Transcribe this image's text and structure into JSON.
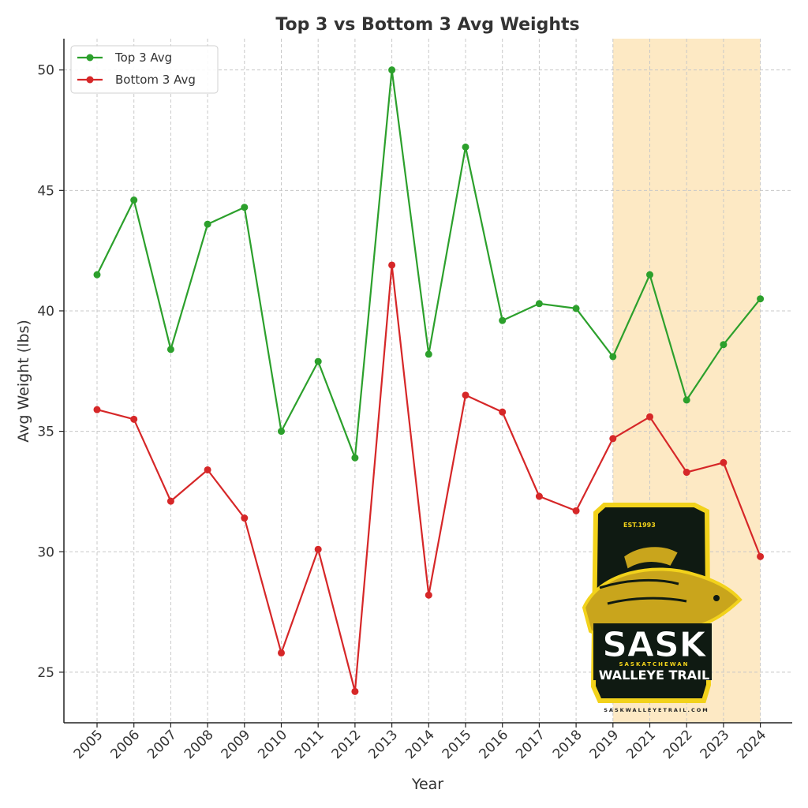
{
  "chart_data": {
    "type": "line",
    "title": "Top 3 vs Bottom 3 Avg Weights",
    "xlabel": "Year",
    "ylabel": "Avg Weight (lbs)",
    "categories": [
      "2005",
      "2006",
      "2007",
      "2008",
      "2009",
      "2010",
      "2011",
      "2012",
      "2013",
      "2014",
      "2015",
      "2016",
      "2017",
      "2018",
      "2019",
      "2021",
      "2022",
      "2023",
      "2024"
    ],
    "series": [
      {
        "name": "Top 3 Avg",
        "color": "#2ca02c",
        "values": [
          41.5,
          44.6,
          38.4,
          43.6,
          44.3,
          35.0,
          37.9,
          33.9,
          50.0,
          38.2,
          46.8,
          39.6,
          40.3,
          40.1,
          38.1,
          41.5,
          36.3,
          38.6,
          40.5
        ]
      },
      {
        "name": "Bottom 3 Avg",
        "color": "#d62728",
        "values": [
          35.9,
          35.5,
          32.1,
          33.4,
          31.4,
          25.8,
          30.1,
          24.2,
          41.9,
          28.2,
          36.5,
          35.8,
          32.3,
          31.7,
          34.7,
          35.6,
          33.3,
          33.7,
          29.8
        ]
      }
    ],
    "yticks": [
      25,
      30,
      35,
      40,
      45,
      50
    ],
    "ylim": [
      22.9,
      51.3
    ],
    "grid": true,
    "legend_position": "top-left",
    "highlight": {
      "from": "2019",
      "to": "2024",
      "color": "#fde9c4"
    }
  },
  "logo": {
    "est": "EST.1993",
    "brand": "SASK",
    "region": "SASKATCHEWAN",
    "name": "WALLEYE TRAIL",
    "url": "SASKWALLEYETRAIL.COM"
  }
}
